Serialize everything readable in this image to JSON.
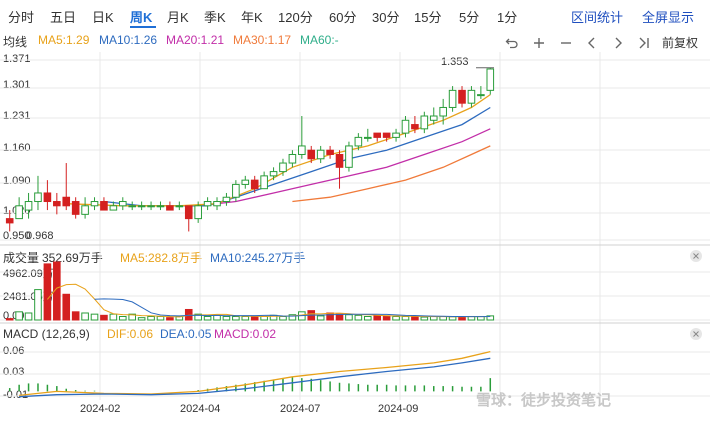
{
  "tabs": [
    {
      "label": "分时",
      "active": false
    },
    {
      "label": "五日",
      "active": false
    },
    {
      "label": "日K",
      "active": false
    },
    {
      "label": "周K",
      "active": true
    },
    {
      "label": "月K",
      "active": false
    },
    {
      "label": "季K",
      "active": false
    },
    {
      "label": "年K",
      "active": false
    },
    {
      "label": "120分",
      "active": false
    },
    {
      "label": "60分",
      "active": false
    },
    {
      "label": "30分",
      "active": false
    },
    {
      "label": "15分",
      "active": false
    },
    {
      "label": "5分",
      "active": false
    },
    {
      "label": "1分",
      "active": false
    }
  ],
  "right_links": {
    "interval": "区间统计",
    "fullscreen": "全屏显示"
  },
  "kline_legend": {
    "label": "均线",
    "ma5": "MA5:1.29",
    "ma10": "MA10:1.26",
    "ma20": "MA20:1.21",
    "ma30": "MA30:1.17",
    "ma60": "MA60:-"
  },
  "adjust_label": "前复权",
  "colors": {
    "up": "#2a9d3a",
    "down": "#d42020",
    "ma5": "#e8a21a",
    "ma10": "#2d6bbf",
    "ma20": "#c22ea8",
    "ma30": "#f07a3a",
    "ma60": "#2fae8a",
    "grid": "#e9e9e9"
  },
  "price_axis": [
    "1.371",
    "1.301",
    "1.231",
    "1.160",
    "1.090",
    "1.020",
    "0.950"
  ],
  "price_annotations": {
    "high": "1.353",
    "low": "0.968"
  },
  "volume_legend": {
    "label": "成交量",
    "value": "352.69万手",
    "ma5": "MA5:282.8万手",
    "ma10": "MA10:245.27万手"
  },
  "volume_axis": [
    "4962.09万",
    "2481.05万",
    "0.00"
  ],
  "macd_legend": {
    "label": "MACD (12,26,9)",
    "dif": "DIF:0.06",
    "dea": "DEA:0.05",
    "macd": "MACD:0.02"
  },
  "macd_axis": [
    "0.06",
    "0.03",
    "-0.01"
  ],
  "x_axis": [
    "2024-02",
    "2024-04",
    "2024-07",
    "2024-09"
  ],
  "watermark": "雪球：徒步投资笔记",
  "chart_data": {
    "type": "candlestick",
    "price_range": [
      0.95,
      1.371
    ],
    "candles": [
      {
        "o": 1.0,
        "c": 0.99,
        "h": 1.02,
        "l": 0.97
      },
      {
        "o": 1.0,
        "c": 1.03,
        "h": 1.05,
        "l": 1.0
      },
      {
        "o": 1.02,
        "c": 1.04,
        "h": 1.06,
        "l": 1.0
      },
      {
        "o": 1.04,
        "c": 1.06,
        "h": 1.1,
        "l": 1.02
      },
      {
        "o": 1.06,
        "c": 1.04,
        "h": 1.09,
        "l": 1.02
      },
      {
        "o": 1.04,
        "c": 1.03,
        "h": 1.06,
        "l": 1.01
      },
      {
        "o": 1.05,
        "c": 1.03,
        "h": 1.13,
        "l": 1.02
      },
      {
        "o": 1.04,
        "c": 1.01,
        "h": 1.05,
        "l": 1.0
      },
      {
        "o": 1.01,
        "c": 1.03,
        "h": 1.05,
        "l": 1.0
      },
      {
        "o": 1.03,
        "c": 1.04,
        "h": 1.05,
        "l": 1.02
      },
      {
        "o": 1.04,
        "c": 1.02,
        "h": 1.05,
        "l": 1.02
      },
      {
        "o": 1.02,
        "c": 1.03,
        "h": 1.04,
        "l": 1.02
      },
      {
        "o": 1.03,
        "c": 1.04,
        "h": 1.05,
        "l": 1.02
      },
      {
        "o": 1.03,
        "c": 1.03,
        "h": 1.04,
        "l": 1.02
      },
      {
        "o": 1.03,
        "c": 1.03,
        "h": 1.04,
        "l": 1.02
      },
      {
        "o": 1.03,
        "c": 1.03,
        "h": 1.04,
        "l": 1.02
      },
      {
        "o": 1.03,
        "c": 1.03,
        "h": 1.04,
        "l": 1.02
      },
      {
        "o": 1.03,
        "c": 1.02,
        "h": 1.04,
        "l": 1.02
      },
      {
        "o": 1.03,
        "c": 1.03,
        "h": 1.04,
        "l": 1.02
      },
      {
        "o": 1.03,
        "c": 1.0,
        "h": 1.03,
        "l": 0.97
      },
      {
        "o": 1.0,
        "c": 1.03,
        "h": 1.04,
        "l": 0.99
      },
      {
        "o": 1.03,
        "c": 1.04,
        "h": 1.05,
        "l": 1.02
      },
      {
        "o": 1.03,
        "c": 1.04,
        "h": 1.05,
        "l": 1.02
      },
      {
        "o": 1.04,
        "c": 1.05,
        "h": 1.06,
        "l": 1.03
      },
      {
        "o": 1.05,
        "c": 1.08,
        "h": 1.09,
        "l": 1.04
      },
      {
        "o": 1.08,
        "c": 1.09,
        "h": 1.1,
        "l": 1.07
      },
      {
        "o": 1.09,
        "c": 1.07,
        "h": 1.1,
        "l": 1.06
      },
      {
        "o": 1.07,
        "c": 1.1,
        "h": 1.11,
        "l": 1.07
      },
      {
        "o": 1.1,
        "c": 1.11,
        "h": 1.12,
        "l": 1.09
      },
      {
        "o": 1.11,
        "c": 1.13,
        "h": 1.14,
        "l": 1.1
      },
      {
        "o": 1.13,
        "c": 1.15,
        "h": 1.16,
        "l": 1.12
      },
      {
        "o": 1.15,
        "c": 1.17,
        "h": 1.24,
        "l": 1.14
      },
      {
        "o": 1.16,
        "c": 1.14,
        "h": 1.17,
        "l": 1.13
      },
      {
        "o": 1.14,
        "c": 1.16,
        "h": 1.17,
        "l": 1.13
      },
      {
        "o": 1.16,
        "c": 1.15,
        "h": 1.17,
        "l": 1.14
      },
      {
        "o": 1.15,
        "c": 1.12,
        "h": 1.16,
        "l": 1.07
      },
      {
        "o": 1.12,
        "c": 1.17,
        "h": 1.18,
        "l": 1.11
      },
      {
        "o": 1.17,
        "c": 1.19,
        "h": 1.2,
        "l": 1.16
      },
      {
        "o": 1.19,
        "c": 1.19,
        "h": 1.21,
        "l": 1.18
      },
      {
        "o": 1.2,
        "c": 1.19,
        "h": 1.2,
        "l": 1.18
      },
      {
        "o": 1.2,
        "c": 1.19,
        "h": 1.2,
        "l": 1.18
      },
      {
        "o": 1.19,
        "c": 1.2,
        "h": 1.21,
        "l": 1.18
      },
      {
        "o": 1.2,
        "c": 1.23,
        "h": 1.24,
        "l": 1.19
      },
      {
        "o": 1.22,
        "c": 1.21,
        "h": 1.24,
        "l": 1.2
      },
      {
        "o": 1.21,
        "c": 1.24,
        "h": 1.25,
        "l": 1.2
      },
      {
        "o": 1.23,
        "c": 1.24,
        "h": 1.26,
        "l": 1.22
      },
      {
        "o": 1.24,
        "c": 1.26,
        "h": 1.28,
        "l": 1.22
      },
      {
        "o": 1.26,
        "c": 1.3,
        "h": 1.31,
        "l": 1.25
      },
      {
        "o": 1.3,
        "c": 1.27,
        "h": 1.31,
        "l": 1.26
      },
      {
        "o": 1.27,
        "c": 1.3,
        "h": 1.31,
        "l": 1.26
      },
      {
        "o": 1.29,
        "c": 1.29,
        "h": 1.31,
        "l": 1.28
      },
      {
        "o": 1.3,
        "c": 1.35,
        "h": 1.353,
        "l": 1.29
      }
    ],
    "ma": {
      "ma5": [
        [
          6,
          1.035
        ],
        [
          12,
          1.03
        ],
        [
          18,
          1.03
        ],
        [
          22,
          1.035
        ],
        [
          26,
          1.07
        ],
        [
          30,
          1.12
        ],
        [
          34,
          1.15
        ],
        [
          38,
          1.17
        ],
        [
          42,
          1.2
        ],
        [
          46,
          1.23
        ],
        [
          49,
          1.26
        ],
        [
          51,
          1.29
        ]
      ],
      "ma10": [
        [
          10,
          1.04
        ],
        [
          14,
          1.03
        ],
        [
          18,
          1.03
        ],
        [
          21,
          1.03
        ],
        [
          24,
          1.05
        ],
        [
          28,
          1.08
        ],
        [
          32,
          1.11
        ],
        [
          36,
          1.14
        ],
        [
          40,
          1.16
        ],
        [
          44,
          1.19
        ],
        [
          48,
          1.22
        ],
        [
          51,
          1.26
        ]
      ],
      "ma20": [
        [
          20,
          1.03
        ],
        [
          24,
          1.04
        ],
        [
          28,
          1.06
        ],
        [
          32,
          1.08
        ],
        [
          36,
          1.1
        ],
        [
          40,
          1.12
        ],
        [
          44,
          1.15
        ],
        [
          48,
          1.18
        ],
        [
          51,
          1.21
        ]
      ],
      "ma30": [
        [
          30,
          1.04
        ],
        [
          34,
          1.05
        ],
        [
          38,
          1.07
        ],
        [
          42,
          1.09
        ],
        [
          46,
          1.12
        ],
        [
          49,
          1.15
        ],
        [
          51,
          1.17
        ]
      ]
    },
    "volume_range": [
      0,
      4962.09
    ],
    "volume_unit": "万手",
    "volumes": [
      120,
      700,
      600,
      2600,
      4800,
      4962,
      2200,
      700,
      600,
      500,
      400,
      500,
      300,
      500,
      200,
      300,
      300,
      200,
      300,
      900,
      500,
      300,
      400,
      300,
      300,
      300,
      300,
      300,
      400,
      300,
      450,
      700,
      800,
      350,
      600,
      500,
      450,
      400,
      300,
      350,
      350,
      300,
      300,
      300,
      250,
      300,
      300,
      280,
      270,
      300,
      300,
      352.69
    ],
    "macd_range": [
      -0.01,
      0.07
    ],
    "macd": {
      "dif": [
        [
          1,
          -0.006
        ],
        [
          5,
          0.0
        ],
        [
          10,
          -0.003
        ],
        [
          15,
          -0.004
        ],
        [
          20,
          0.0
        ],
        [
          25,
          0.01
        ],
        [
          30,
          0.022
        ],
        [
          35,
          0.03
        ],
        [
          40,
          0.036
        ],
        [
          45,
          0.043
        ],
        [
          48,
          0.05
        ],
        [
          51,
          0.06
        ]
      ],
      "dea": [
        [
          1,
          -0.008
        ],
        [
          5,
          -0.005
        ],
        [
          10,
          -0.004
        ],
        [
          15,
          -0.005
        ],
        [
          20,
          -0.003
        ],
        [
          25,
          0.004
        ],
        [
          30,
          0.013
        ],
        [
          35,
          0.022
        ],
        [
          40,
          0.03
        ],
        [
          45,
          0.037
        ],
        [
          48,
          0.043
        ],
        [
          51,
          0.05
        ]
      ],
      "hist": [
        0.005,
        0.01,
        0.012,
        0.012,
        0.01,
        0.008,
        0.004,
        0.002,
        0.001,
        0.001,
        0.0,
        0.0,
        0.0,
        0.0,
        0.0,
        0.0,
        0.0,
        0.0,
        0.0,
        0.0,
        0.002,
        0.004,
        0.006,
        0.008,
        0.01,
        0.012,
        0.014,
        0.016,
        0.018,
        0.02,
        0.021,
        0.02,
        0.019,
        0.017,
        0.015,
        0.013,
        0.012,
        0.011,
        0.01,
        0.01,
        0.01,
        0.009,
        0.009,
        0.009,
        0.009,
        0.008,
        0.008,
        0.008,
        0.007,
        0.007,
        0.007,
        0.02
      ]
    }
  }
}
